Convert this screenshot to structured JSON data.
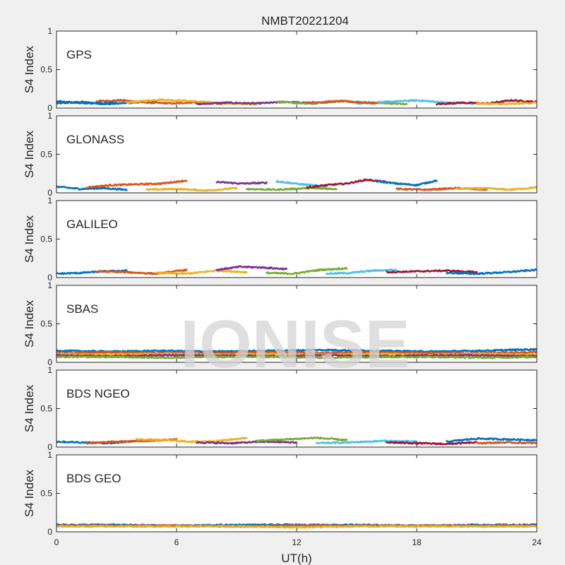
{
  "figure": {
    "title": "NMBT20221204",
    "xlabel": "UT(h)",
    "watermark": "IONISE",
    "background": "#f0f0f0",
    "axes_color": "#262626",
    "series_colors": [
      "#0072BD",
      "#D95319",
      "#EDB120",
      "#7E2F8E",
      "#77AC30",
      "#4DBEEE",
      "#A2142F"
    ]
  },
  "chart_data": [
    {
      "type": "scatter",
      "panel_label": "GPS",
      "ylabel": "S4 Index",
      "xlim": [
        0,
        24
      ],
      "ylim": [
        0,
        1
      ],
      "x_ticks": [
        0,
        6,
        12,
        18,
        24
      ],
      "y_ticks": [
        0,
        0.5,
        1
      ],
      "y_tick_labels": [
        "0",
        "0.5",
        "1"
      ],
      "x_tick_labels": [],
      "grid": false,
      "tracks": [
        {
          "start": 0.0,
          "end": 5.0,
          "values": [
            0.06,
            0.08,
            0.05,
            0.07,
            0.09
          ]
        },
        {
          "start": 2.0,
          "end": 8.5,
          "values": [
            0.09,
            0.1,
            0.07,
            0.06,
            0.08,
            0.05
          ]
        },
        {
          "start": 3.5,
          "end": 10.0,
          "values": [
            0.07,
            0.11,
            0.09,
            0.06,
            0.05
          ]
        },
        {
          "start": 7.0,
          "end": 13.0,
          "values": [
            0.05,
            0.07,
            0.06,
            0.08,
            0.06
          ]
        },
        {
          "start": 11.0,
          "end": 17.5,
          "values": [
            0.08,
            0.06,
            0.09,
            0.07,
            0.05
          ]
        },
        {
          "start": 15.0,
          "end": 21.0,
          "values": [
            0.06,
            0.08,
            0.1,
            0.07,
            0.06
          ]
        },
        {
          "start": 19.0,
          "end": 24.0,
          "values": [
            0.05,
            0.07,
            0.06,
            0.1,
            0.08
          ]
        },
        {
          "start": 0.0,
          "end": 3.0,
          "values": [
            0.09,
            0.06,
            0.07
          ]
        },
        {
          "start": 12.5,
          "end": 16.0,
          "values": [
            0.07,
            0.09,
            0.06
          ]
        },
        {
          "start": 21.0,
          "end": 24.0,
          "values": [
            0.06,
            0.05,
            0.07
          ]
        }
      ]
    },
    {
      "type": "scatter",
      "panel_label": "GLONASS",
      "ylabel": "S4 Index",
      "xlim": [
        0,
        24
      ],
      "ylim": [
        0,
        1
      ],
      "x_ticks": [
        0,
        6,
        12,
        18,
        24
      ],
      "y_ticks": [
        0,
        0.5,
        1
      ],
      "y_tick_labels": [
        "0",
        "0.5",
        "1"
      ],
      "x_tick_labels": [],
      "grid": false,
      "tracks": [
        {
          "start": 0.0,
          "end": 3.5,
          "values": [
            0.08,
            0.05,
            0.06,
            0.04
          ]
        },
        {
          "start": 1.5,
          "end": 6.5,
          "values": [
            0.07,
            0.1,
            0.11,
            0.12,
            0.16
          ]
        },
        {
          "start": 4.5,
          "end": 9.0,
          "values": [
            0.04,
            0.05,
            0.03,
            0.06
          ]
        },
        {
          "start": 8.0,
          "end": 10.5,
          "values": [
            0.14,
            0.12,
            0.13
          ]
        },
        {
          "start": 9.5,
          "end": 14.0,
          "values": [
            0.05,
            0.04,
            0.06,
            0.05
          ]
        },
        {
          "start": 11.0,
          "end": 13.5,
          "values": [
            0.15,
            0.11,
            0.08
          ]
        },
        {
          "start": 12.5,
          "end": 16.5,
          "values": [
            0.07,
            0.1,
            0.12,
            0.17,
            0.14
          ]
        },
        {
          "start": 16.0,
          "end": 19.0,
          "values": [
            0.15,
            0.12,
            0.1,
            0.16
          ]
        },
        {
          "start": 17.0,
          "end": 21.5,
          "values": [
            0.05,
            0.04,
            0.06,
            0.04
          ]
        },
        {
          "start": 20.0,
          "end": 24.0,
          "values": [
            0.05,
            0.06,
            0.04,
            0.07
          ]
        }
      ]
    },
    {
      "type": "scatter",
      "panel_label": "GALILEO",
      "ylabel": "S4 Index",
      "xlim": [
        0,
        24
      ],
      "ylim": [
        0,
        1
      ],
      "x_ticks": [
        0,
        6,
        12,
        18,
        24
      ],
      "y_ticks": [
        0,
        0.5,
        1
      ],
      "y_tick_labels": [
        "0",
        "0.5",
        "1"
      ],
      "x_tick_labels": [],
      "grid": false,
      "tracks": [
        {
          "start": 0.0,
          "end": 3.5,
          "values": [
            0.05,
            0.06,
            0.08,
            0.09
          ]
        },
        {
          "start": 2.0,
          "end": 6.5,
          "values": [
            0.08,
            0.07,
            0.05,
            0.1
          ]
        },
        {
          "start": 5.0,
          "end": 9.5,
          "values": [
            0.06,
            0.05,
            0.09,
            0.07
          ]
        },
        {
          "start": 8.0,
          "end": 11.5,
          "values": [
            0.1,
            0.14,
            0.13,
            0.11
          ]
        },
        {
          "start": 10.5,
          "end": 14.5,
          "values": [
            0.06,
            0.05,
            0.1,
            0.12
          ]
        },
        {
          "start": 13.5,
          "end": 17.0,
          "values": [
            0.05,
            0.06,
            0.09,
            0.1
          ]
        },
        {
          "start": 16.5,
          "end": 21.0,
          "values": [
            0.07,
            0.08,
            0.09,
            0.07
          ]
        },
        {
          "start": 19.5,
          "end": 24.0,
          "values": [
            0.06,
            0.05,
            0.07,
            0.1
          ]
        }
      ]
    },
    {
      "type": "scatter",
      "panel_label": "SBAS",
      "ylabel": "S4 Index",
      "xlim": [
        0,
        24
      ],
      "ylim": [
        0,
        1
      ],
      "x_ticks": [
        0,
        6,
        12,
        18,
        24
      ],
      "y_ticks": [
        0,
        0.5,
        1
      ],
      "y_tick_labels": [
        "0",
        "0.5",
        "1"
      ],
      "x_tick_labels": [],
      "grid": false,
      "tracks": [
        {
          "start": 0.0,
          "end": 24.0,
          "values": [
            0.15,
            0.14,
            0.15,
            0.14,
            0.15,
            0.16,
            0.15,
            0.14,
            0.15,
            0.17
          ]
        },
        {
          "start": 0.0,
          "end": 24.0,
          "values": [
            0.12,
            0.13,
            0.12,
            0.12,
            0.13,
            0.12,
            0.13,
            0.12,
            0.12,
            0.13
          ]
        },
        {
          "start": 0.0,
          "end": 24.0,
          "values": [
            0.11,
            0.1,
            0.11,
            0.1,
            0.11,
            0.1,
            0.11,
            0.1,
            0.11,
            0.1
          ]
        },
        {
          "start": 0.0,
          "end": 24.0,
          "values": [
            0.09,
            0.08,
            0.09,
            0.09,
            0.08,
            0.09,
            0.08,
            0.09,
            0.09,
            0.08
          ]
        },
        {
          "start": 0.0,
          "end": 24.0,
          "values": [
            0.07,
            0.07,
            0.06,
            0.07,
            0.07,
            0.06,
            0.07,
            0.07,
            0.06,
            0.07
          ]
        }
      ]
    },
    {
      "type": "scatter",
      "panel_label": "BDS NGEO",
      "ylabel": "S4 Index",
      "xlim": [
        0,
        24
      ],
      "ylim": [
        0,
        1
      ],
      "x_ticks": [
        0,
        6,
        12,
        18,
        24
      ],
      "y_ticks": [
        0,
        0.5,
        1
      ],
      "y_tick_labels": [
        "0",
        "0.5",
        "1"
      ],
      "x_tick_labels": [],
      "grid": false,
      "tracks": [
        {
          "start": 0.0,
          "end": 4.0,
          "values": [
            0.07,
            0.06,
            0.05,
            0.08
          ]
        },
        {
          "start": 1.5,
          "end": 6.0,
          "values": [
            0.05,
            0.07,
            0.08,
            0.1
          ]
        },
        {
          "start": 4.0,
          "end": 9.5,
          "values": [
            0.1,
            0.09,
            0.07,
            0.08,
            0.12
          ]
        },
        {
          "start": 7.0,
          "end": 12.0,
          "values": [
            0.06,
            0.05,
            0.07,
            0.06
          ]
        },
        {
          "start": 10.0,
          "end": 14.5,
          "values": [
            0.08,
            0.1,
            0.12,
            0.09
          ]
        },
        {
          "start": 13.0,
          "end": 18.0,
          "values": [
            0.05,
            0.06,
            0.08,
            0.07
          ]
        },
        {
          "start": 16.5,
          "end": 21.0,
          "values": [
            0.06,
            0.05,
            0.04,
            0.06
          ]
        },
        {
          "start": 19.5,
          "end": 24.0,
          "values": [
            0.07,
            0.11,
            0.1,
            0.09
          ]
        },
        {
          "start": 21.0,
          "end": 24.0,
          "values": [
            0.05,
            0.06,
            0.05
          ]
        }
      ]
    },
    {
      "type": "scatter",
      "panel_label": "BDS GEO",
      "ylabel": "S4 Index",
      "xlim": [
        0,
        24
      ],
      "ylim": [
        0,
        1
      ],
      "x_ticks": [
        0,
        6,
        12,
        18,
        24
      ],
      "y_ticks": [
        0,
        0.5,
        1
      ],
      "y_tick_labels": [
        "0",
        "0.5",
        "1"
      ],
      "x_tick_labels": [
        "0",
        "6",
        "12",
        "18",
        "24"
      ],
      "grid": false,
      "tracks": [
        {
          "start": 0.0,
          "end": 24.0,
          "values": [
            0.09,
            0.09,
            0.08,
            0.09,
            0.09,
            0.09,
            0.08,
            0.09,
            0.09
          ]
        },
        {
          "start": 0.0,
          "end": 24.0,
          "values": [
            0.08,
            0.08,
            0.08,
            0.07,
            0.08,
            0.08,
            0.08,
            0.08,
            0.08
          ]
        },
        {
          "start": 0.0,
          "end": 24.0,
          "values": [
            0.07,
            0.07,
            0.07,
            0.07,
            0.06,
            0.07,
            0.07,
            0.07,
            0.07
          ]
        }
      ]
    }
  ]
}
